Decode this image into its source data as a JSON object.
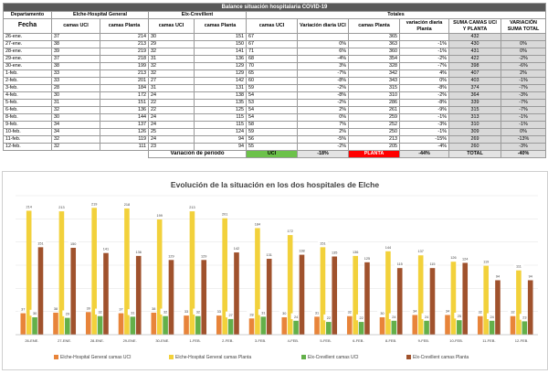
{
  "sheet": {
    "title": "Balance situación hospitalaria COVID-19",
    "dept_label": "Departamento",
    "fecha_label": "Fecha",
    "elche_label": "Elche-Hospital General",
    "elx_label": "Elx-Crevillent",
    "totales_label": "Totales",
    "col_uci": "camas UCI",
    "col_planta": "camas Planta",
    "col_var_uci": "Variación diaria UCI",
    "col_var_planta": "variación diaria Planta",
    "col_suma": "SUMA CAMAS UCI Y PLANTA",
    "col_var_suma": "VARIACIÓN SUMA TOTAL",
    "rows": [
      {
        "fecha": "26-ene.",
        "e_uci": "37",
        "e_planta": "214",
        "x_uci": "30",
        "x_planta": "151",
        "t_uci": "67",
        "v_uci": "",
        "t_planta": "365",
        "v_planta": "",
        "suma": "432",
        "v_suma": ""
      },
      {
        "fecha": "27-ene.",
        "e_uci": "38",
        "e_planta": "213",
        "x_uci": "29",
        "x_planta": "150",
        "t_uci": "67",
        "v_uci": "0%",
        "t_planta": "363",
        "v_planta": "-1%",
        "suma": "430",
        "v_suma": "0%"
      },
      {
        "fecha": "28-ene.",
        "e_uci": "39",
        "e_planta": "219",
        "x_uci": "32",
        "x_planta": "141",
        "t_uci": "71",
        "v_uci": "6%",
        "t_planta": "360",
        "v_planta": "-1%",
        "suma": "431",
        "v_suma": "0%"
      },
      {
        "fecha": "29-ene.",
        "e_uci": "37",
        "e_planta": "218",
        "x_uci": "31",
        "x_planta": "136",
        "t_uci": "68",
        "v_uci": "-4%",
        "t_planta": "354",
        "v_planta": "-2%",
        "suma": "422",
        "v_suma": "-2%"
      },
      {
        "fecha": "30-ene.",
        "e_uci": "38",
        "e_planta": "199",
        "x_uci": "32",
        "x_planta": "129",
        "t_uci": "70",
        "v_uci": "3%",
        "t_planta": "328",
        "v_planta": "-7%",
        "suma": "398",
        "v_suma": "-6%"
      },
      {
        "fecha": "1-feb.",
        "e_uci": "33",
        "e_planta": "213",
        "x_uci": "32",
        "x_planta": "129",
        "t_uci": "65",
        "v_uci": "-7%",
        "t_planta": "342",
        "v_planta": "4%",
        "suma": "407",
        "v_suma": "2%"
      },
      {
        "fecha": "2-feb.",
        "e_uci": "33",
        "e_planta": "201",
        "x_uci": "27",
        "x_planta": "142",
        "t_uci": "60",
        "v_uci": "-8%",
        "t_planta": "343",
        "v_planta": "0%",
        "suma": "403",
        "v_suma": "-1%"
      },
      {
        "fecha": "3-feb.",
        "e_uci": "28",
        "e_planta": "184",
        "x_uci": "31",
        "x_planta": "131",
        "t_uci": "59",
        "v_uci": "-2%",
        "t_planta": "315",
        "v_planta": "-8%",
        "suma": "374",
        "v_suma": "-7%"
      },
      {
        "fecha": "4-feb.",
        "e_uci": "30",
        "e_planta": "172",
        "x_uci": "24",
        "x_planta": "138",
        "t_uci": "54",
        "v_uci": "-8%",
        "t_planta": "310",
        "v_planta": "-2%",
        "suma": "364",
        "v_suma": "-3%"
      },
      {
        "fecha": "5-feb.",
        "e_uci": "31",
        "e_planta": "151",
        "x_uci": "22",
        "x_planta": "135",
        "t_uci": "53",
        "v_uci": "-2%",
        "t_planta": "286",
        "v_planta": "-8%",
        "suma": "339",
        "v_suma": "-7%"
      },
      {
        "fecha": "6-feb.",
        "e_uci": "32",
        "e_planta": "136",
        "x_uci": "22",
        "x_planta": "125",
        "t_uci": "54",
        "v_uci": "2%",
        "t_planta": "261",
        "v_planta": "-9%",
        "suma": "315",
        "v_suma": "-7%"
      },
      {
        "fecha": "8-feb.",
        "e_uci": "30",
        "e_planta": "144",
        "x_uci": "24",
        "x_planta": "115",
        "t_uci": "54",
        "v_uci": "0%",
        "t_planta": "259",
        "v_planta": "-1%",
        "suma": "313",
        "v_suma": "-1%"
      },
      {
        "fecha": "9-feb.",
        "e_uci": "34",
        "e_planta": "137",
        "x_uci": "24",
        "x_planta": "115",
        "t_uci": "58",
        "v_uci": "7%",
        "t_planta": "252",
        "v_planta": "-3%",
        "suma": "310",
        "v_suma": "-1%"
      },
      {
        "fecha": "10-feb.",
        "e_uci": "34",
        "e_planta": "126",
        "x_uci": "25",
        "x_planta": "124",
        "t_uci": "59",
        "v_uci": "2%",
        "t_planta": "250",
        "v_planta": "-1%",
        "suma": "309",
        "v_suma": "0%"
      },
      {
        "fecha": "11-feb.",
        "e_uci": "32",
        "e_planta": "119",
        "x_uci": "24",
        "x_planta": "94",
        "t_uci": "56",
        "v_uci": "-5%",
        "t_planta": "213",
        "v_planta": "-15%",
        "suma": "269",
        "v_suma": "-13%"
      },
      {
        "fecha": "12-feb.",
        "e_uci": "32",
        "e_planta": "111",
        "x_uci": "23",
        "x_planta": "94",
        "t_uci": "55",
        "v_uci": "-2%",
        "t_planta": "205",
        "v_planta": "-4%",
        "suma": "260",
        "v_suma": "-3%"
      }
    ],
    "variacion_label": "Variación de periodo",
    "var_uci_label": "UCI",
    "var_uci_value": "-18%",
    "var_planta_label": "PLANTA",
    "var_planta_value": "-44%",
    "var_total_label": "TOTAL",
    "var_total_value": "-40%"
  },
  "colors": {
    "elche_uci": "#e8843a",
    "elche_planta": "#f2d13b",
    "elx_uci": "#63b04a",
    "elx_planta": "#a0522d",
    "green_cell": "#6cc24a",
    "red_cell": "#ff0000",
    "title_bar": "#595959"
  },
  "chart_data": {
    "type": "bar",
    "title": "Evolución de la situación en los dos hospitales de Elche",
    "categories": [
      "26-ENE.",
      "27-ENE.",
      "28-ENE.",
      "29-ENE.",
      "30-ENE.",
      "1-FEB.",
      "2-FEB.",
      "3-FEB.",
      "4-FEB.",
      "5-FEB.",
      "6-FEB.",
      "8-FEB.",
      "9-FEB.",
      "10-FEB.",
      "11-FEB.",
      "12-FEB."
    ],
    "series": [
      {
        "name": "Elche-Hospital General camas UCI",
        "values": [
          37,
          38,
          39,
          37,
          38,
          33,
          33,
          28,
          30,
          31,
          32,
          30,
          34,
          34,
          32,
          32
        ]
      },
      {
        "name": "Elche-Hospital General camas Planta",
        "values": [
          214,
          213,
          219,
          218,
          199,
          213,
          201,
          184,
          172,
          151,
          136,
          144,
          137,
          126,
          119,
          111
        ]
      },
      {
        "name": "Elx-Crevillent camas UCI",
        "values": [
          30,
          29,
          32,
          31,
          32,
          32,
          27,
          31,
          24,
          22,
          22,
          24,
          24,
          25,
          24,
          23
        ]
      },
      {
        "name": "Elx-Crevillent camas Planta",
        "values": [
          151,
          150,
          141,
          136,
          129,
          129,
          142,
          131,
          138,
          135,
          125,
          115,
          115,
          124,
          94,
          94
        ]
      }
    ],
    "ylim": [
      0,
      240
    ],
    "grid": true,
    "legend_position": "bottom"
  }
}
